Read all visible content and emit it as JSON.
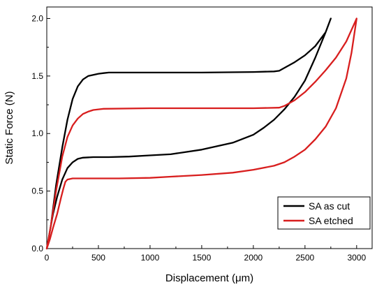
{
  "chart_data": {
    "type": "line",
    "title": "",
    "xlabel": "Displacement (μm)",
    "ylabel": "Static Force (N)",
    "xlim": [
      0,
      3150
    ],
    "ylim": [
      0,
      2.1
    ],
    "x_ticks": [
      "0",
      "500",
      "1000",
      "1500",
      "2000",
      "2500",
      "3000"
    ],
    "y_ticks": [
      "0.0",
      "0.5",
      "1.0",
      "1.5",
      "2.0"
    ],
    "grid": false,
    "legend_position": "bottom-right",
    "series": [
      {
        "name": "SA as cut",
        "color": "#000000",
        "x": [
          0,
          40,
          90,
          150,
          200,
          250,
          300,
          350,
          400,
          450,
          500,
          550,
          600,
          650,
          1000,
          1500,
          2000,
          2200,
          2250,
          2300,
          2400,
          2500,
          2600,
          2700,
          2750,
          2700,
          2600,
          2500,
          2400,
          2300,
          2200,
          2100,
          2000,
          1800,
          1500,
          1200,
          1000,
          800,
          600,
          450,
          350,
          300,
          250,
          200,
          150,
          100,
          60,
          30,
          0
        ],
        "y": [
          0.0,
          0.2,
          0.55,
          0.88,
          1.12,
          1.3,
          1.41,
          1.47,
          1.5,
          1.51,
          1.52,
          1.525,
          1.53,
          1.53,
          1.53,
          1.53,
          1.535,
          1.54,
          1.545,
          1.57,
          1.62,
          1.68,
          1.76,
          1.88,
          2.0,
          1.88,
          1.66,
          1.46,
          1.32,
          1.21,
          1.12,
          1.05,
          0.99,
          0.92,
          0.86,
          0.82,
          0.81,
          0.8,
          0.795,
          0.795,
          0.79,
          0.78,
          0.75,
          0.7,
          0.6,
          0.45,
          0.3,
          0.15,
          0.0
        ]
      },
      {
        "name": "SA etched",
        "color": "#d81e1e",
        "x": [
          0,
          40,
          90,
          150,
          200,
          250,
          300,
          350,
          400,
          450,
          500,
          550,
          1000,
          1500,
          2000,
          2250,
          2300,
          2400,
          2500,
          2600,
          2700,
          2800,
          2900,
          3000,
          2950,
          2900,
          2800,
          2700,
          2600,
          2500,
          2400,
          2300,
          2200,
          2000,
          1800,
          1500,
          1200,
          1000,
          700,
          400,
          250,
          200,
          180,
          160,
          140,
          100,
          60,
          30,
          0
        ],
        "y": [
          0.0,
          0.2,
          0.5,
          0.8,
          0.97,
          1.07,
          1.13,
          1.17,
          1.19,
          1.205,
          1.21,
          1.215,
          1.22,
          1.22,
          1.22,
          1.225,
          1.24,
          1.29,
          1.36,
          1.45,
          1.55,
          1.66,
          1.8,
          2.0,
          1.7,
          1.48,
          1.22,
          1.06,
          0.95,
          0.86,
          0.8,
          0.75,
          0.72,
          0.685,
          0.66,
          0.64,
          0.625,
          0.615,
          0.61,
          0.61,
          0.61,
          0.6,
          0.58,
          0.52,
          0.45,
          0.3,
          0.18,
          0.08,
          0.0
        ]
      }
    ]
  }
}
